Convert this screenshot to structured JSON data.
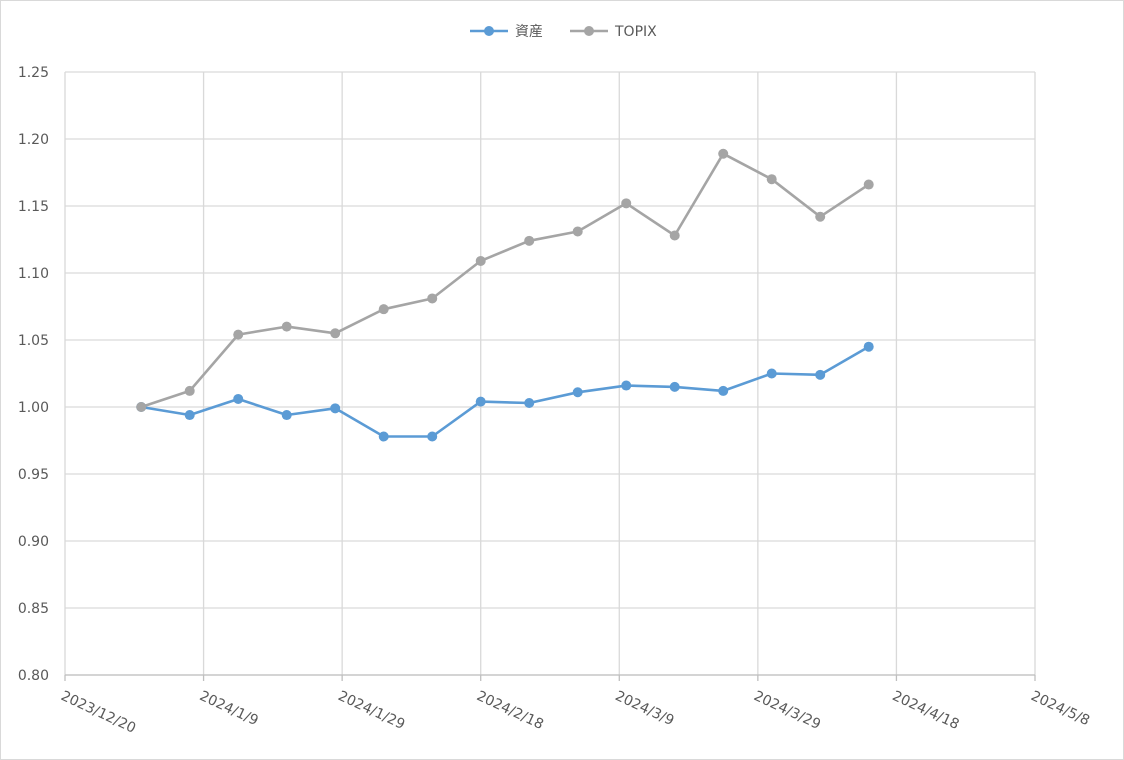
{
  "chart_data": {
    "type": "line",
    "title": "",
    "xlabel": "",
    "ylabel": "",
    "ylim": [
      0.8,
      1.25
    ],
    "y_ticks": [
      "0.80",
      "0.85",
      "0.90",
      "0.95",
      "1.00",
      "1.05",
      "1.10",
      "1.15",
      "1.20",
      "1.25"
    ],
    "x_range": [
      "2023-12-20",
      "2024-05-08"
    ],
    "x_ticks": [
      {
        "date": "2023-12-20",
        "label": "2023/12/20"
      },
      {
        "date": "2024-01-09",
        "label": "2024/1/9"
      },
      {
        "date": "2024-01-29",
        "label": "2024/1/29"
      },
      {
        "date": "2024-02-18",
        "label": "2024/2/18"
      },
      {
        "date": "2024-03-09",
        "label": "2024/3/9"
      },
      {
        "date": "2024-03-29",
        "label": "2024/3/29"
      },
      {
        "date": "2024-04-18",
        "label": "2024/4/18"
      },
      {
        "date": "2024-05-08",
        "label": "2024/5/8"
      }
    ],
    "grid": true,
    "legend_position": "top-center",
    "x": [
      "2023-12-31",
      "2024-01-07",
      "2024-01-14",
      "2024-01-21",
      "2024-01-28",
      "2024-02-04",
      "2024-02-11",
      "2024-02-18",
      "2024-02-25",
      "2024-03-03",
      "2024-03-10",
      "2024-03-17",
      "2024-03-24",
      "2024-03-31",
      "2024-04-07",
      "2024-04-14"
    ],
    "series": [
      {
        "name": "資産",
        "color": "#5b9bd5",
        "values": [
          1.0,
          0.994,
          1.006,
          0.994,
          0.999,
          0.978,
          0.978,
          1.004,
          1.003,
          1.011,
          1.016,
          1.015,
          1.012,
          1.025,
          1.024,
          1.045
        ]
      },
      {
        "name": "TOPIX",
        "color": "#a5a5a5",
        "values": [
          1.0,
          1.012,
          1.054,
          1.06,
          1.055,
          1.073,
          1.081,
          1.109,
          1.124,
          1.131,
          1.152,
          1.128,
          1.189,
          1.17,
          1.142,
          1.166
        ]
      }
    ]
  }
}
